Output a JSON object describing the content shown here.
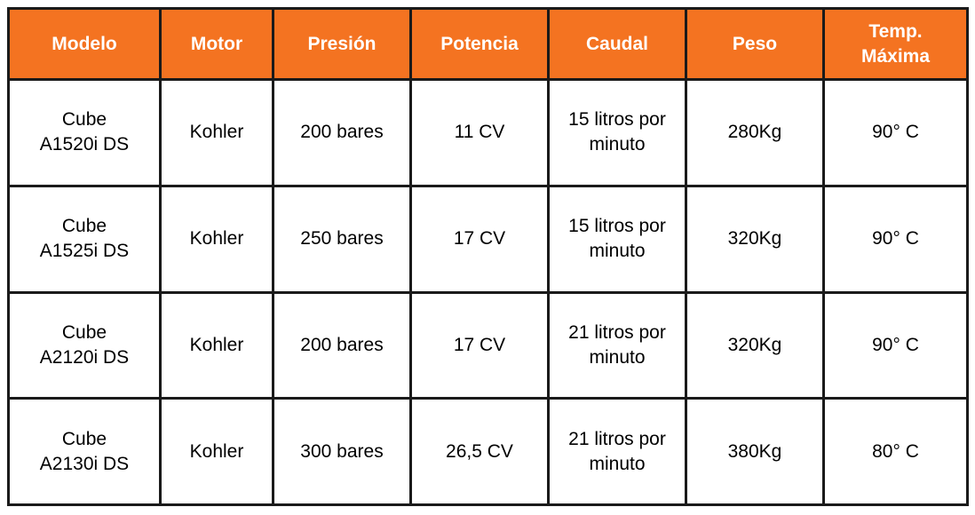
{
  "table": {
    "headers": [
      [
        "Modelo"
      ],
      [
        "Motor"
      ],
      [
        "Presión"
      ],
      [
        "Potencia"
      ],
      [
        "Caudal"
      ],
      [
        "Peso"
      ],
      [
        "Temp.",
        "Máxima"
      ]
    ],
    "rows": [
      [
        [
          "Cube",
          "A1520i DS"
        ],
        [
          "Kohler"
        ],
        [
          "200 bares"
        ],
        [
          "11 CV"
        ],
        [
          "15 litros por",
          "minuto"
        ],
        [
          "280Kg"
        ],
        [
          "90° C"
        ]
      ],
      [
        [
          "Cube",
          "A1525i DS"
        ],
        [
          "Kohler"
        ],
        [
          "250 bares"
        ],
        [
          "17 CV"
        ],
        [
          "15 litros por",
          "minuto"
        ],
        [
          "320Kg"
        ],
        [
          "90° C"
        ]
      ],
      [
        [
          "Cube",
          "A2120i DS"
        ],
        [
          "Kohler"
        ],
        [
          "200 bares"
        ],
        [
          "17 CV"
        ],
        [
          "21 litros por",
          "minuto"
        ],
        [
          "320Kg"
        ],
        [
          "90° C"
        ]
      ],
      [
        [
          "Cube",
          "A2130i DS"
        ],
        [
          "Kohler"
        ],
        [
          "300 bares"
        ],
        [
          "26,5 CV"
        ],
        [
          "21 litros por",
          "minuto"
        ],
        [
          "380Kg"
        ],
        [
          "80° C"
        ]
      ]
    ]
  },
  "colors": {
    "header_background": "#f47321",
    "header_text": "#ffffff",
    "border": "#1a1a1a"
  }
}
